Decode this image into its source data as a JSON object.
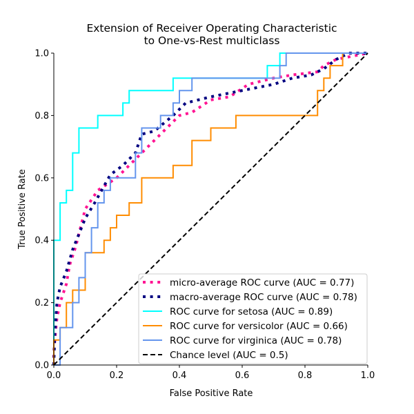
{
  "chart_data": {
    "type": "line",
    "title": [
      "Extension of Receiver Operating Characteristic",
      "to One-vs-Rest multiclass"
    ],
    "xlabel": "False Positive Rate",
    "ylabel": "True Positive Rate",
    "xlim": [
      0,
      1
    ],
    "ylim": [
      0,
      1
    ],
    "xticks": [
      "0.0",
      "0.2",
      "0.4",
      "0.6",
      "0.8",
      "1.0"
    ],
    "yticks": [
      "0.0",
      "0.2",
      "0.4",
      "0.6",
      "0.8",
      "1.0"
    ],
    "grid": false,
    "legend_position": "lower-right",
    "series": [
      {
        "name": "micro-average ROC curve (AUC = 0.77)",
        "color": "#ff1493",
        "style": "dotted",
        "points": [
          [
            0,
            0
          ],
          [
            0,
            0.04
          ],
          [
            0.005,
            0.1
          ],
          [
            0.01,
            0.15
          ],
          [
            0.02,
            0.2
          ],
          [
            0.04,
            0.26
          ],
          [
            0.05,
            0.32
          ],
          [
            0.07,
            0.38
          ],
          [
            0.09,
            0.46
          ],
          [
            0.1,
            0.5
          ],
          [
            0.14,
            0.56
          ],
          [
            0.17,
            0.58
          ],
          [
            0.2,
            0.6
          ],
          [
            0.22,
            0.62
          ],
          [
            0.26,
            0.66
          ],
          [
            0.3,
            0.7
          ],
          [
            0.34,
            0.74
          ],
          [
            0.38,
            0.78
          ],
          [
            0.4,
            0.8
          ],
          [
            0.44,
            0.81
          ],
          [
            0.5,
            0.85
          ],
          [
            0.56,
            0.86
          ],
          [
            0.62,
            0.9
          ],
          [
            0.7,
            0.92
          ],
          [
            0.76,
            0.93
          ],
          [
            0.84,
            0.94
          ],
          [
            0.86,
            0.96
          ],
          [
            0.9,
            0.98
          ],
          [
            1,
            1
          ]
        ]
      },
      {
        "name": "macro-average ROC curve (AUC = 0.78)",
        "color": "#000080",
        "style": "dotted",
        "points": [
          [
            0,
            0
          ],
          [
            0.003,
            0.1
          ],
          [
            0.01,
            0.2
          ],
          [
            0.02,
            0.25
          ],
          [
            0.04,
            0.3
          ],
          [
            0.06,
            0.37
          ],
          [
            0.08,
            0.42
          ],
          [
            0.1,
            0.47
          ],
          [
            0.13,
            0.52
          ],
          [
            0.18,
            0.61
          ],
          [
            0.22,
            0.64
          ],
          [
            0.26,
            0.68
          ],
          [
            0.28,
            0.74
          ],
          [
            0.32,
            0.75
          ],
          [
            0.38,
            0.8
          ],
          [
            0.42,
            0.84
          ],
          [
            0.5,
            0.86
          ],
          [
            0.6,
            0.88
          ],
          [
            0.7,
            0.9
          ],
          [
            0.76,
            0.92
          ],
          [
            0.82,
            0.93
          ],
          [
            0.86,
            0.95
          ],
          [
            0.9,
            0.98
          ],
          [
            0.94,
            1.0
          ],
          [
            1,
            1
          ]
        ]
      },
      {
        "name": "ROC curve for setosa (AUC = 0.89)",
        "color": "#00ffff",
        "style": "solid",
        "points": [
          [
            0,
            0
          ],
          [
            0,
            0.4
          ],
          [
            0.02,
            0.4
          ],
          [
            0.02,
            0.52
          ],
          [
            0.04,
            0.52
          ],
          [
            0.04,
            0.56
          ],
          [
            0.06,
            0.56
          ],
          [
            0.06,
            0.68
          ],
          [
            0.08,
            0.68
          ],
          [
            0.08,
            0.76
          ],
          [
            0.14,
            0.76
          ],
          [
            0.14,
            0.8
          ],
          [
            0.22,
            0.8
          ],
          [
            0.22,
            0.84
          ],
          [
            0.24,
            0.84
          ],
          [
            0.24,
            0.88
          ],
          [
            0.38,
            0.88
          ],
          [
            0.38,
            0.92
          ],
          [
            0.68,
            0.92
          ],
          [
            0.68,
            0.96
          ],
          [
            0.72,
            0.96
          ],
          [
            0.72,
            1
          ],
          [
            1,
            1
          ]
        ]
      },
      {
        "name": "ROC curve for versicolor (AUC = 0.66)",
        "color": "#ff8c00",
        "style": "solid",
        "points": [
          [
            0,
            0
          ],
          [
            0,
            0.08
          ],
          [
            0.02,
            0.08
          ],
          [
            0.02,
            0.12
          ],
          [
            0.04,
            0.12
          ],
          [
            0.04,
            0.2
          ],
          [
            0.06,
            0.2
          ],
          [
            0.06,
            0.24
          ],
          [
            0.1,
            0.24
          ],
          [
            0.1,
            0.36
          ],
          [
            0.16,
            0.36
          ],
          [
            0.16,
            0.4
          ],
          [
            0.18,
            0.4
          ],
          [
            0.18,
            0.44
          ],
          [
            0.2,
            0.44
          ],
          [
            0.2,
            0.48
          ],
          [
            0.24,
            0.48
          ],
          [
            0.24,
            0.52
          ],
          [
            0.28,
            0.52
          ],
          [
            0.28,
            0.6
          ],
          [
            0.38,
            0.6
          ],
          [
            0.38,
            0.64
          ],
          [
            0.44,
            0.64
          ],
          [
            0.44,
            0.72
          ],
          [
            0.5,
            0.72
          ],
          [
            0.5,
            0.76
          ],
          [
            0.58,
            0.76
          ],
          [
            0.58,
            0.8
          ],
          [
            0.84,
            0.8
          ],
          [
            0.84,
            0.88
          ],
          [
            0.86,
            0.88
          ],
          [
            0.86,
            0.92
          ],
          [
            0.88,
            0.92
          ],
          [
            0.88,
            0.96
          ],
          [
            0.92,
            0.96
          ],
          [
            0.92,
            1
          ],
          [
            1,
            1
          ]
        ]
      },
      {
        "name": "ROC curve for virginica (AUC = 0.78)",
        "color": "#6495ed",
        "style": "solid",
        "points": [
          [
            0,
            0
          ],
          [
            0.02,
            0
          ],
          [
            0.02,
            0.12
          ],
          [
            0.06,
            0.12
          ],
          [
            0.06,
            0.2
          ],
          [
            0.08,
            0.2
          ],
          [
            0.08,
            0.28
          ],
          [
            0.1,
            0.28
          ],
          [
            0.1,
            0.36
          ],
          [
            0.12,
            0.36
          ],
          [
            0.12,
            0.44
          ],
          [
            0.14,
            0.44
          ],
          [
            0.14,
            0.52
          ],
          [
            0.16,
            0.52
          ],
          [
            0.16,
            0.56
          ],
          [
            0.18,
            0.56
          ],
          [
            0.18,
            0.6
          ],
          [
            0.26,
            0.6
          ],
          [
            0.26,
            0.68
          ],
          [
            0.28,
            0.68
          ],
          [
            0.28,
            0.76
          ],
          [
            0.34,
            0.76
          ],
          [
            0.34,
            0.8
          ],
          [
            0.38,
            0.8
          ],
          [
            0.38,
            0.84
          ],
          [
            0.4,
            0.84
          ],
          [
            0.4,
            0.88
          ],
          [
            0.44,
            0.88
          ],
          [
            0.44,
            0.92
          ],
          [
            0.72,
            0.92
          ],
          [
            0.72,
            0.96
          ],
          [
            0.74,
            0.96
          ],
          [
            0.74,
            1
          ],
          [
            1,
            1
          ]
        ]
      },
      {
        "name": "Chance level (AUC = 0.5)",
        "color": "#000000",
        "style": "dashed",
        "points": [
          [
            0,
            0
          ],
          [
            1,
            1
          ]
        ]
      }
    ]
  }
}
